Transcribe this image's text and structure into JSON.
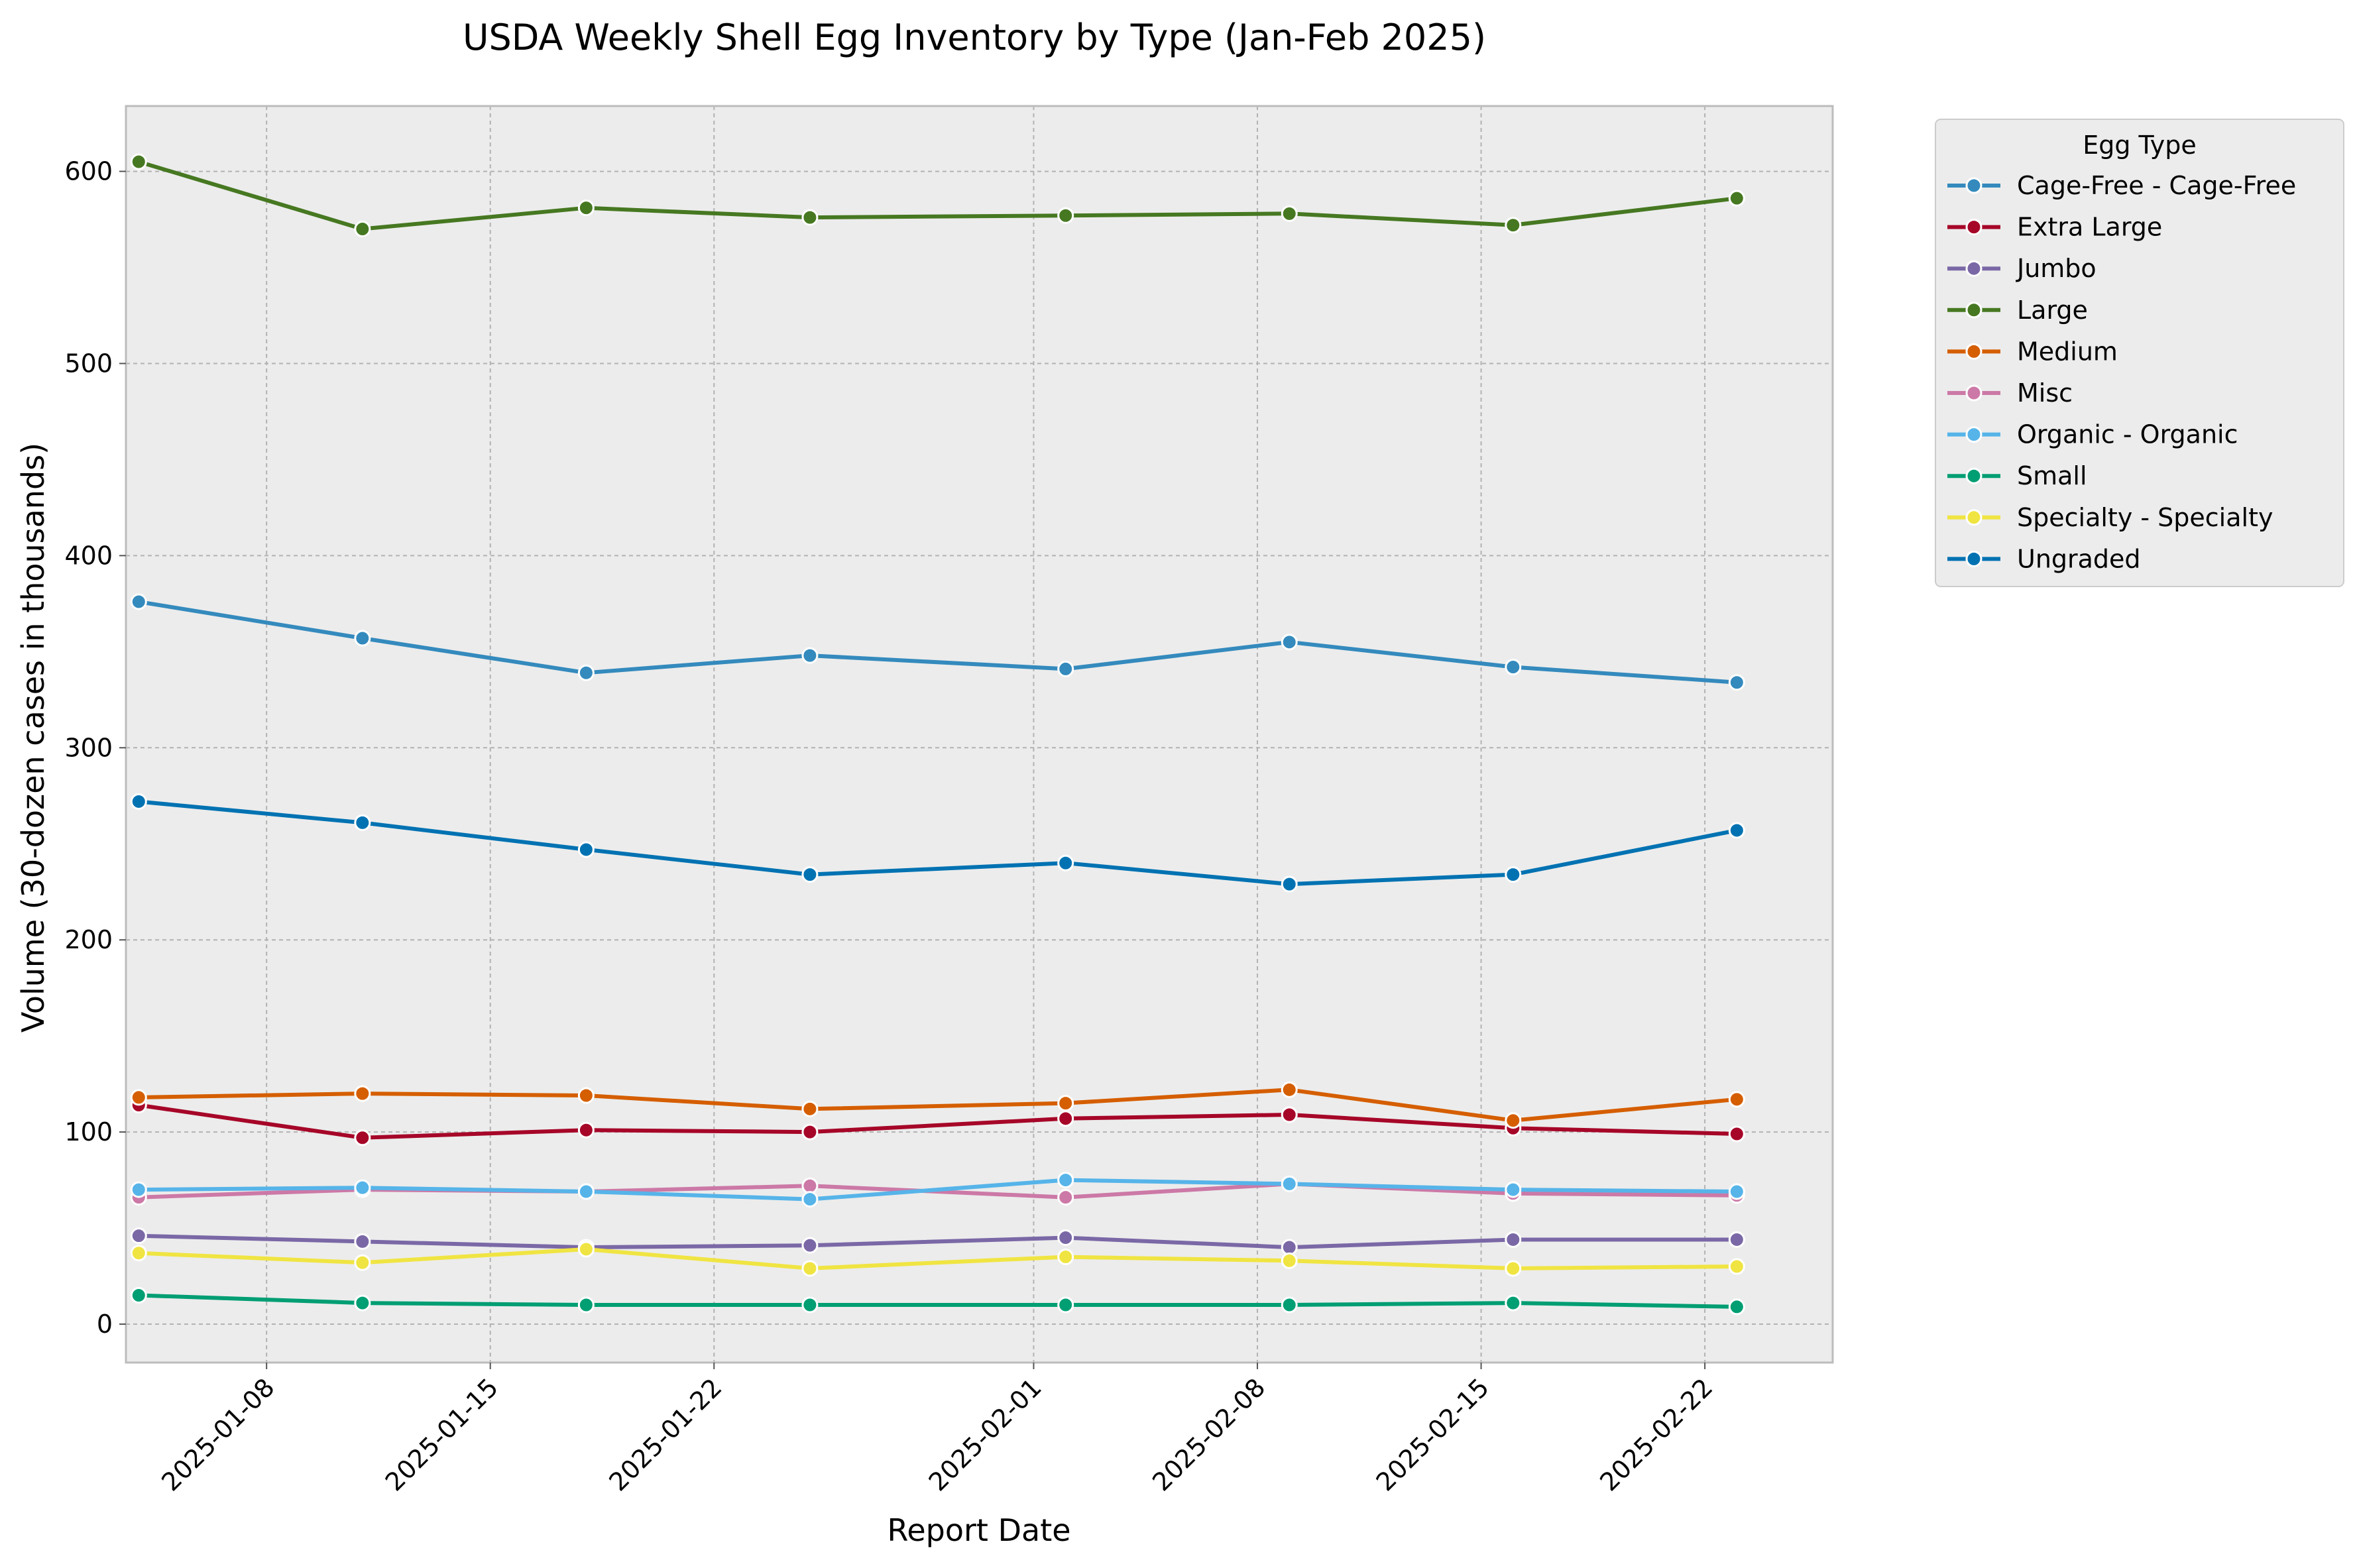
{
  "chart_data": {
    "type": "line",
    "title": "USDA Weekly Shell Egg Inventory by Type (Jan-Feb 2025)",
    "xlabel": "Report Date",
    "ylabel": "Volume (30-dozen cases in thousands)",
    "x": [
      "2025-01-04",
      "2025-01-11",
      "2025-01-18",
      "2025-01-25",
      "2025-02-02",
      "2025-02-09",
      "2025-02-16",
      "2025-02-23"
    ],
    "x_ticks": [
      "2025-01-08",
      "2025-01-15",
      "2025-01-22",
      "2025-02-01",
      "2025-02-08",
      "2025-02-15",
      "2025-02-22"
    ],
    "xlim": [
      "2025-01-03.6",
      "2025-02-26"
    ],
    "y_ticks": [
      0,
      100,
      200,
      300,
      400,
      500,
      600
    ],
    "ylim": [
      -20,
      634
    ],
    "grid": true,
    "legend": {
      "title": "Egg Type",
      "placement": "outside-upper-right"
    },
    "series": [
      {
        "name": "Cage-Free - Cage-Free",
        "color": "#348ABD",
        "values": [
          376,
          357,
          339,
          348,
          341,
          355,
          342,
          334
        ]
      },
      {
        "name": "Extra Large",
        "color": "#A60628",
        "values": [
          114,
          97,
          101,
          100,
          107,
          109,
          102,
          99
        ]
      },
      {
        "name": "Jumbo",
        "color": "#7A68A6",
        "values": [
          46,
          43,
          40,
          41,
          45,
          40,
          44,
          44
        ]
      },
      {
        "name": "Large",
        "color": "#467821",
        "values": [
          605,
          570,
          581,
          576,
          577,
          578,
          572,
          586
        ]
      },
      {
        "name": "Medium",
        "color": "#D55E00",
        "values": [
          118,
          120,
          119,
          112,
          115,
          122,
          106,
          117
        ]
      },
      {
        "name": "Misc",
        "color": "#CC79A7",
        "values": [
          66,
          70,
          69,
          72,
          66,
          73,
          68,
          67
        ]
      },
      {
        "name": "Organic - Organic",
        "color": "#56B4E9",
        "values": [
          70,
          71,
          69,
          65,
          75,
          73,
          70,
          69
        ]
      },
      {
        "name": "Small",
        "color": "#009E73",
        "values": [
          15,
          11,
          10,
          10,
          10,
          10,
          11,
          9
        ]
      },
      {
        "name": "Specialty - Specialty",
        "color": "#F0E442",
        "values": [
          37,
          32,
          39,
          29,
          35,
          33,
          29,
          30
        ]
      },
      {
        "name": "Ungraded",
        "color": "#0072B2",
        "values": [
          272,
          261,
          247,
          234,
          240,
          229,
          234,
          257
        ]
      }
    ]
  }
}
